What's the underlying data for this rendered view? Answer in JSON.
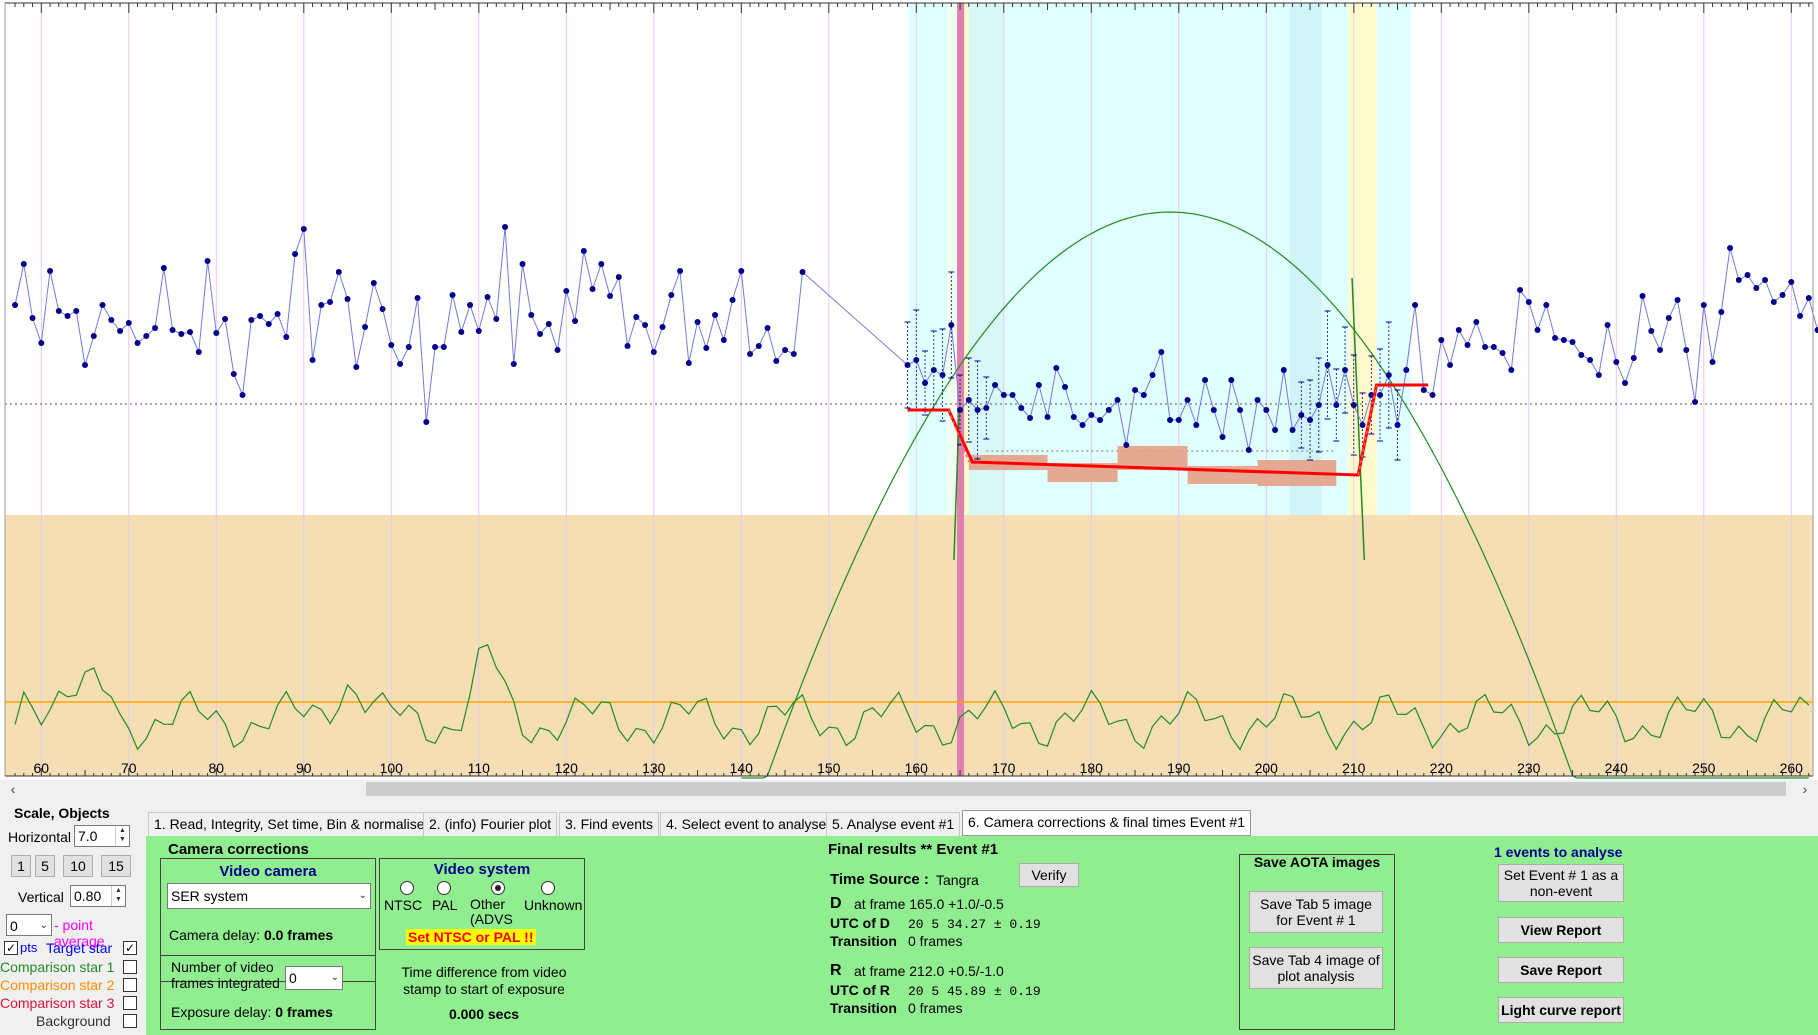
{
  "plot": {
    "x_ticks": [
      "60",
      "70",
      "80",
      "90",
      "100",
      "110",
      "120",
      "130",
      "140",
      "150",
      "160",
      "170",
      "180",
      "190",
      "200",
      "210",
      "220",
      "230",
      "240",
      "250",
      "260"
    ],
    "colors": {
      "data_line": "#7777dd",
      "data_point": "#00008b",
      "model": "#ff0000",
      "green_line": "#228b22",
      "orange_line": "#ffa500",
      "baseline_band": "#f5deb3",
      "event_band": "#e0ffff",
      "transition_band": "#fffacd",
      "marker": "#e080b0"
    }
  },
  "chart_data": {
    "type": "line",
    "x_range": [
      57,
      262
    ],
    "xlabel": "",
    "ylabel": "",
    "target_star_frames_start": 57,
    "target_star_values": [
      305,
      264,
      318,
      343,
      271,
      311,
      316,
      311,
      365,
      336,
      305,
      320,
      331,
      323,
      343,
      336,
      328,
      268,
      330,
      334,
      332,
      352,
      261,
      333,
      319,
      374,
      395,
      320,
      316,
      324,
      314,
      337,
      254,
      229,
      360,
      305,
      302,
      272,
      299,
      367,
      327,
      283,
      309,
      345,
      364,
      347,
      298,
      422,
      347,
      347,
      295,
      332,
      305,
      331,
      297,
      319,
      227,
      364,
      264,
      315,
      334,
      324,
      350,
      291,
      321,
      251,
      289,
      264,
      296,
      277,
      346,
      317,
      325,
      352,
      327,
      295,
      271,
      363,
      322,
      348,
      315,
      340,
      300,
      271,
      354,
      346,
      328,
      361,
      350,
      354,
      272
    ],
    "event_frames_start": 159,
    "event_values": [
      365,
      360,
      383,
      370,
      375,
      325,
      410,
      400,
      410,
      408,
      385,
      395,
      395,
      408,
      418,
      385,
      417,
      368,
      387,
      417,
      425,
      415,
      420,
      410,
      400,
      445,
      390,
      395,
      375,
      352,
      420,
      420,
      400,
      425,
      380,
      410,
      437,
      380,
      410,
      450,
      400,
      410,
      430,
      370,
      430,
      415,
      420,
      405,
      365,
      405,
      370,
      405,
      425,
      395,
      395,
      375,
      425,
      370,
      305,
      390,
      395,
      340,
      365
    ],
    "post_frames_start": 213,
    "post_values": [
      340,
      335,
      345,
      340,
      350,
      360,
      348,
      345,
      370,
      330,
      345,
      322,
      347,
      347,
      353,
      370,
      290,
      302,
      330,
      305,
      338,
      340,
      342,
      355,
      360,
      375,
      325,
      362,
      383,
      358,
      296,
      331,
      350,
      318,
      300,
      350,
      402,
      305,
      362,
      312,
      248,
      280,
      275,
      288,
      280,
      302,
      295,
      282,
      316,
      298,
      330,
      333
    ]
  },
  "tabs": [
    {
      "label": "1.  Read, Integrity, Set time, Bin & normalise"
    },
    {
      "label": "2. (info)  Fourier plot"
    },
    {
      "label": "3. Find events"
    },
    {
      "label": "4. Select event to analyse"
    },
    {
      "label": "5. Analyse event #1"
    },
    {
      "label": "6. Camera corrections & final times Event #1"
    }
  ],
  "left": {
    "scale_objects": "Scale, Objects",
    "horizontal_label": "Horizontal",
    "horizontal_value": "7.0",
    "scale_buttons": [
      "1",
      "5",
      "10",
      "15"
    ],
    "vertical_label": "Vertical",
    "vertical_value": "0.80",
    "point_avg_value": "0",
    "point_avg_label": "- point average",
    "pts_label": "pts",
    "target_star": "Target star",
    "comparison1": "Comparison star 1",
    "comparison2": "Comparison star 2",
    "comparison3": "Comparison star 3",
    "background": "Background"
  },
  "camera": {
    "title": "Camera corrections",
    "video_camera": "Video camera",
    "camera_value": "SER system",
    "camera_delay_label": "Camera delay:",
    "camera_delay_value": "0.0 frames",
    "video_system": "Video system",
    "ntsc": "NTSC",
    "pal": "PAL",
    "other": "Other (ADVS",
    "unknown": "Unknown",
    "warn": "Set NTSC or PAL !!",
    "frames_integrated_label": "Number of video frames integrated",
    "frames_integrated_value": "0",
    "exposure_delay_label": "Exposure delay:",
    "exposure_delay_value": "0 frames",
    "time_diff_label": "Time difference from video stamp to start of exposure",
    "time_diff_value": "0.000 secs"
  },
  "final": {
    "title": "Final results  **  Event #1",
    "time_source_label": "Time Source :",
    "time_source_value": "Tangra",
    "verify": "Verify",
    "d_label": "D",
    "d_frame": "at frame 165.0 +1.0/-0.5",
    "utc_d_label": "UTC of D",
    "utc_d_value": "20  5 34.27  ± 0.19",
    "transition_label": "Transition",
    "transition_d": "0 frames",
    "r_label": "R",
    "r_frame": "at frame 212.0 +0.5/-1.0",
    "utc_r_label": "UTC of R",
    "utc_r_value": "20  5 45.89  ± 0.19",
    "transition_r": "0 frames"
  },
  "aota": {
    "title": "Save AOTA images",
    "save_tab5": "Save Tab 5 image for Event # 1",
    "save_tab4": "Save Tab 4 image of plot analysis"
  },
  "report": {
    "events_count": "1  events to analyse",
    "set_nonevent": "Set Event # 1 as a non-event",
    "view": "View Report",
    "save": "Save Report",
    "light_curve": "Light curve report"
  }
}
